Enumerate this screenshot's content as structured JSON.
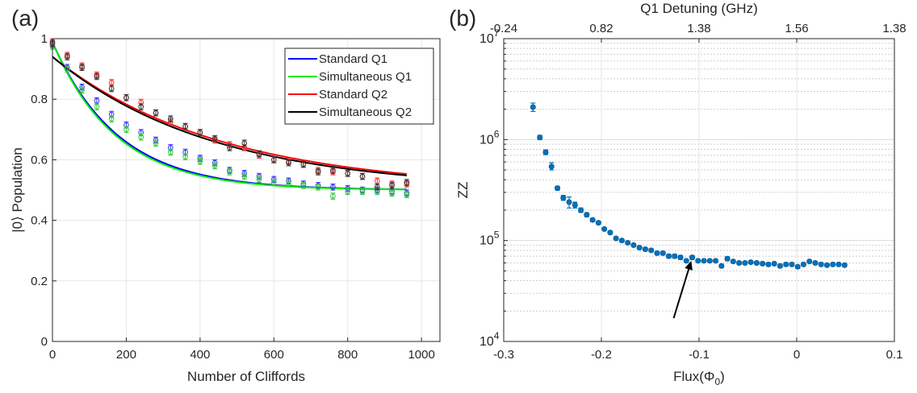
{
  "chart_data": [
    {
      "type": "scatter",
      "panel_label": "(a)",
      "xlabel": "Number of Cliffords",
      "ylabel": "|0⟩ Population",
      "xlim": [
        0,
        1050
      ],
      "ylim": [
        0,
        1
      ],
      "xticks": [
        0,
        200,
        400,
        600,
        800,
        1000
      ],
      "xtick_labels": [
        "0",
        "200",
        "400",
        "600",
        "800",
        "1000"
      ],
      "yticks": [
        0,
        0.2,
        0.4,
        0.6,
        0.8,
        1
      ],
      "ytick_labels": [
        "0",
        "0.2",
        "0.4",
        "0.6",
        "0.8",
        "1"
      ],
      "grid": true,
      "legend_position": "top-right",
      "x": [
        0,
        40,
        80,
        120,
        160,
        200,
        240,
        280,
        320,
        360,
        400,
        440,
        480,
        520,
        560,
        600,
        640,
        680,
        720,
        760,
        800,
        840,
        880,
        920,
        960
      ],
      "series": [
        {
          "name": "Standard Q1",
          "color": "#0000ff",
          "marker_color": "#3333ff",
          "fit": {
            "a": 0.5,
            "b": 0.488,
            "p": 0.9944
          },
          "values": [
            0.98,
            0.905,
            0.84,
            0.795,
            0.75,
            0.715,
            0.69,
            0.665,
            0.64,
            0.625,
            0.605,
            0.59,
            0.565,
            0.555,
            0.545,
            0.535,
            0.53,
            0.52,
            0.515,
            0.51,
            0.505,
            0.5,
            0.5,
            0.495,
            0.49
          ],
          "errors": [
            0.01,
            0.01,
            0.01,
            0.01,
            0.01,
            0.01,
            0.01,
            0.01,
            0.01,
            0.01,
            0.01,
            0.01,
            0.01,
            0.01,
            0.01,
            0.01,
            0.01,
            0.01,
            0.01,
            0.01,
            0.01,
            0.01,
            0.01,
            0.01,
            0.01
          ]
        },
        {
          "name": "Simultaneous Q1",
          "color": "#00ee00",
          "marker_color": "#33cc33",
          "fit": {
            "a": 0.5,
            "b": 0.488,
            "p": 0.9942
          },
          "values": [
            0.975,
            0.9,
            0.83,
            0.775,
            0.735,
            0.7,
            0.675,
            0.655,
            0.625,
            0.61,
            0.595,
            0.58,
            0.56,
            0.545,
            0.535,
            0.525,
            0.52,
            0.515,
            0.51,
            0.48,
            0.495,
            0.495,
            0.495,
            0.49,
            0.485
          ],
          "errors": [
            0.01,
            0.01,
            0.01,
            0.01,
            0.01,
            0.01,
            0.01,
            0.01,
            0.01,
            0.01,
            0.01,
            0.01,
            0.01,
            0.01,
            0.01,
            0.01,
            0.01,
            0.01,
            0.01,
            0.01,
            0.01,
            0.01,
            0.01,
            0.01,
            0.01
          ]
        },
        {
          "name": "Standard Q2",
          "color": "#ff0000",
          "marker_color": "#ff3333",
          "fit": {
            "a": 0.5,
            "b": 0.44,
            "p": 0.9978
          },
          "values": [
            0.99,
            0.945,
            0.91,
            0.88,
            0.855,
            0.805,
            0.79,
            0.755,
            0.725,
            0.71,
            0.69,
            0.665,
            0.65,
            0.64,
            0.615,
            0.6,
            0.595,
            0.585,
            0.565,
            0.56,
            0.555,
            0.545,
            0.53,
            0.52,
            0.52
          ],
          "errors": [
            0.01,
            0.01,
            0.01,
            0.01,
            0.01,
            0.01,
            0.01,
            0.01,
            0.01,
            0.01,
            0.01,
            0.01,
            0.01,
            0.01,
            0.01,
            0.01,
            0.01,
            0.01,
            0.01,
            0.01,
            0.01,
            0.01,
            0.01,
            0.01,
            0.01
          ]
        },
        {
          "name": "Simultaneous Q2",
          "color": "#000000",
          "marker_color": "#333333",
          "fit": {
            "a": 0.5,
            "b": 0.44,
            "p": 0.9977
          },
          "values": [
            0.985,
            0.94,
            0.905,
            0.875,
            0.835,
            0.805,
            0.775,
            0.755,
            0.735,
            0.71,
            0.69,
            0.67,
            0.64,
            0.655,
            0.62,
            0.6,
            0.59,
            0.585,
            0.56,
            0.565,
            0.555,
            0.545,
            0.51,
            0.515,
            0.525
          ],
          "errors": [
            0.01,
            0.01,
            0.01,
            0.01,
            0.01,
            0.01,
            0.01,
            0.01,
            0.01,
            0.01,
            0.01,
            0.01,
            0.01,
            0.01,
            0.01,
            0.01,
            0.01,
            0.01,
            0.01,
            0.01,
            0.01,
            0.01,
            0.01,
            0.01,
            0.01
          ]
        }
      ]
    },
    {
      "type": "scatter",
      "panel_label": "(b)",
      "xlabel": "Flux(Φ",
      "xlabel_subscript": "0",
      "xlabel_suffix": ")",
      "ylabel": "ZZ",
      "top_xlabel": "Q1 Detuning (GHz)",
      "top_xtick_labels": [
        "-0.24",
        "0.82",
        "1.38",
        "1.56",
        "1.38"
      ],
      "xlim": [
        -0.3,
        0.1
      ],
      "ylim": [
        10000,
        10000000
      ],
      "y_scale": "log",
      "xticks": [
        -0.3,
        -0.2,
        -0.1,
        0,
        0.1
      ],
      "xtick_labels": [
        "-0.3",
        "-0.2",
        "-0.1",
        "0",
        "0.1"
      ],
      "ytick_base": "10",
      "ytick_exponents": [
        "4",
        "5",
        "6",
        "7"
      ],
      "grid": true,
      "marker_color": "#0072bd",
      "annotation": {
        "type": "arrow",
        "points_to": [
          -0.108,
          63000
        ],
        "from": [
          -0.126,
          17000
        ]
      },
      "x": [
        -0.27,
        -0.263,
        -0.257,
        -0.251,
        -0.245,
        -0.239,
        -0.233,
        -0.227,
        -0.221,
        -0.215,
        -0.209,
        -0.203,
        -0.197,
        -0.191,
        -0.185,
        -0.179,
        -0.173,
        -0.167,
        -0.161,
        -0.155,
        -0.149,
        -0.143,
        -0.137,
        -0.131,
        -0.125,
        -0.119,
        -0.113,
        -0.107,
        -0.101,
        -0.095,
        -0.089,
        -0.083,
        -0.077,
        -0.071,
        -0.065,
        -0.059,
        -0.053,
        -0.047,
        -0.041,
        -0.035,
        -0.029,
        -0.023,
        -0.017,
        -0.011,
        -0.005,
        0.001,
        0.007,
        0.013,
        0.019,
        0.025,
        0.031,
        0.037,
        0.043,
        0.049
      ],
      "values": [
        2100000,
        1050000,
        750000,
        540000,
        330000,
        265000,
        240000,
        225000,
        200000,
        180000,
        160000,
        150000,
        130000,
        120000,
        105000,
        100000,
        95000,
        90000,
        85000,
        82000,
        80000,
        75000,
        75000,
        70000,
        70000,
        68000,
        63000,
        68000,
        63000,
        63000,
        63000,
        63000,
        56000,
        66000,
        62000,
        60000,
        60000,
        61000,
        60000,
        59000,
        58000,
        59000,
        56000,
        58000,
        58000,
        55000,
        58000,
        62000,
        60000,
        58000,
        57000,
        58000,
        58000,
        57000
      ],
      "err_low": [
        1900000,
        1000000,
        710000,
        500000,
        315000,
        250000,
        210000,
        210000,
        190000,
        172000,
        154000,
        145000,
        126000,
        116000,
        102000,
        97000,
        92000,
        87000,
        82000,
        79000,
        77000,
        72000,
        72000,
        67000,
        67000,
        65000,
        61000,
        65000,
        61000,
        61000,
        61000,
        61000,
        54000,
        63000,
        60000,
        58000,
        58000,
        59000,
        58000,
        57000,
        56000,
        57000,
        54000,
        56000,
        56000,
        53000,
        56000,
        60000,
        58000,
        56000,
        55000,
        56000,
        56000,
        55000
      ],
      "err_high": [
        2300000,
        1100000,
        790000,
        590000,
        345000,
        280000,
        270000,
        240000,
        210000,
        188000,
        166000,
        155000,
        134000,
        124000,
        108000,
        103000,
        98000,
        93000,
        88000,
        85000,
        83000,
        78000,
        78000,
        73000,
        73000,
        71000,
        65000,
        71000,
        65000,
        65000,
        65000,
        65000,
        58000,
        69000,
        64000,
        62000,
        62000,
        63000,
        62000,
        61000,
        60000,
        61000,
        58000,
        60000,
        60000,
        57000,
        60000,
        64000,
        62000,
        60000,
        59000,
        60000,
        60000,
        59000
      ]
    }
  ]
}
